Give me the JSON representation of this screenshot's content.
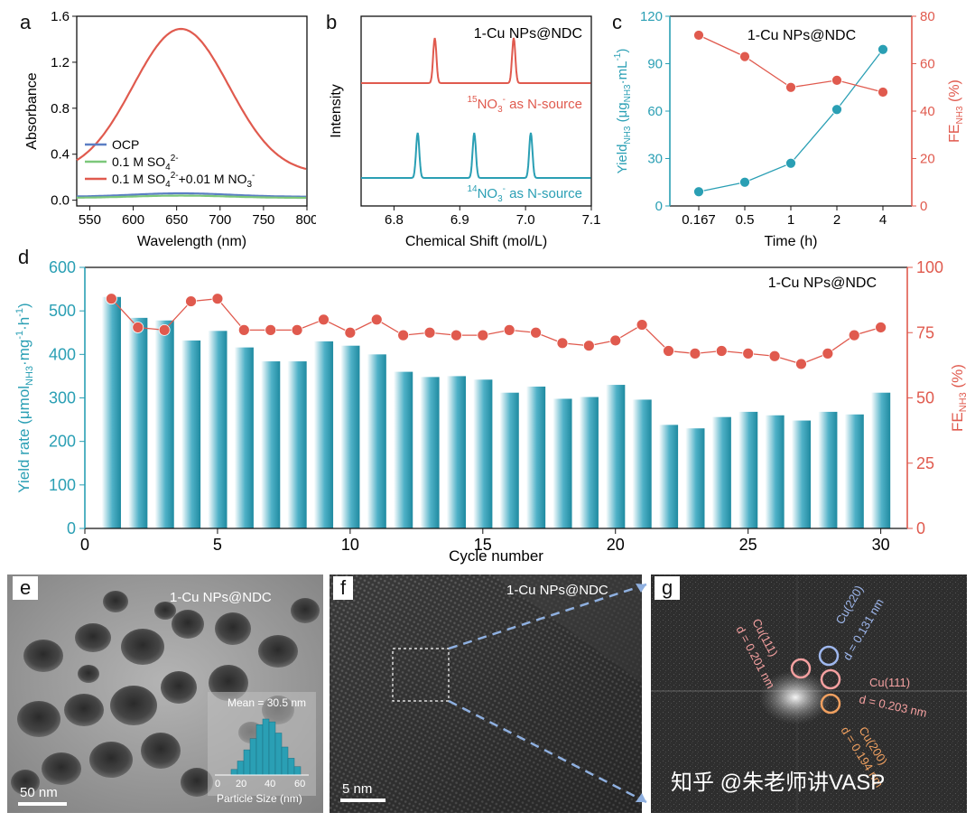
{
  "panels": {
    "a": "a",
    "b": "b",
    "c": "c",
    "d": "d",
    "e": "e",
    "f": "f",
    "g": "g"
  },
  "colors": {
    "red": "#e05a4e",
    "teal": "#2a9fb4",
    "blue": "#5b7fc4",
    "green": "#7cc77a",
    "axis": "#111111"
  },
  "chart_data": [
    {
      "id": "a",
      "type": "line",
      "xlabel": "Wavelength (nm)",
      "ylabel": "Absorbance",
      "xlim": [
        535,
        800
      ],
      "ylim": [
        -0.05,
        1.6
      ],
      "xticks": [
        550,
        600,
        650,
        700,
        750,
        800
      ],
      "yticks": [
        0.0,
        0.4,
        0.8,
        1.2,
        1.6
      ],
      "ytick_labels": [
        "0.0",
        "0.4",
        "0.8",
        "1.2",
        "1.6"
      ],
      "series": [
        {
          "name": "OCP",
          "color": "#5b7fc4",
          "peak": 0.06,
          "base": 0.03
        },
        {
          "name": "0.1 M SO4 2-",
          "color": "#7cc77a",
          "peak": 0.04,
          "base": 0.02
        },
        {
          "name": "0.1 M SO4 2- +0.01 M NO3 -",
          "color": "#e05a4e",
          "peak": 1.49,
          "base": 0.23
        }
      ],
      "legend": [
        {
          "main": "OCP",
          "sup": "",
          "sub": "",
          "tail": ""
        },
        {
          "main": "0.1 M SO",
          "sub": "4",
          "sup": "2-",
          "tail": ""
        },
        {
          "main": "0.1 M SO",
          "sub": "4",
          "sup": "2-",
          "tail": "+0.01 M NO",
          "sub2": "3",
          "sup2": "-"
        }
      ]
    },
    {
      "id": "b",
      "type": "line",
      "xlabel": "Chemical Shift (mol/L)",
      "ylabel": "Intensity",
      "xlim": [
        6.75,
        7.1
      ],
      "xticks": [
        6.8,
        6.9,
        7.0,
        7.1
      ],
      "xtick_labels": [
        "6.8",
        "6.9",
        "7.0",
        "7.1"
      ],
      "title": "1-Cu NPs@NDC",
      "series": [
        {
          "name": "15NO3- as N-source",
          "color": "#e05a4e",
          "peaks": [
            6.862,
            6.982
          ]
        },
        {
          "name": "14NO3- as N-source",
          "color": "#2a9fb4",
          "peaks": [
            6.836,
            6.922,
            7.008
          ]
        }
      ],
      "labels": [
        {
          "sup": "15",
          "main": "NO",
          "sub": "3",
          "sup2": "-",
          "tail": " as N-source"
        },
        {
          "sup": "14",
          "main": "NO",
          "sub": "3",
          "sup2": "-",
          "tail": " as N-source"
        }
      ]
    },
    {
      "id": "c",
      "type": "line",
      "title": "1-Cu NPs@NDC",
      "xlabel": "Time (h)",
      "categories": [
        "0.167",
        "0.5",
        "1",
        "2",
        "4"
      ],
      "ylabel_left": "Yield",
      "ylabel_left_sub": "NH3",
      "ylabel_left_unit1": " (μg",
      "ylabel_left_unit_sub": "NH3",
      "ylabel_left_unit2": "·mL",
      "ylabel_left_unit_sup": "-1",
      "ylabel_left_unit3": ")",
      "ylabel_right": "FE",
      "ylabel_right_sub": "NH3",
      "ylabel_right_unit": " (%)",
      "ylim_left": [
        0,
        120
      ],
      "yticks_left": [
        0,
        30,
        60,
        90,
        120
      ],
      "ylim_right": [
        0,
        80
      ],
      "yticks_right": [
        0,
        20,
        40,
        60,
        80
      ],
      "series": [
        {
          "name": "Yield",
          "axis": "left",
          "color": "#2a9fb4",
          "values": [
            9,
            15,
            27,
            61,
            99
          ]
        },
        {
          "name": "FE",
          "axis": "right",
          "color": "#e05a4e",
          "values": [
            72,
            63,
            50,
            53,
            48
          ]
        }
      ]
    },
    {
      "id": "d",
      "type": "bar",
      "title": "1-Cu NPs@NDC",
      "xlabel": "Cycle number",
      "xlim": [
        0,
        31
      ],
      "xticks": [
        0,
        5,
        10,
        15,
        20,
        25,
        30
      ],
      "ylabel_left": "Yield rate (μmol",
      "ylabel_left_sub": "NH3",
      "ylabel_left_tail": "·mg",
      "ylabel_left_sup": "-1",
      "ylabel_left_tail2": "·h",
      "ylabel_left_sup2": "-1",
      "ylabel_left_tail3": ")",
      "ylabel_right": "FE",
      "ylabel_right_sub": "NH3",
      "ylabel_right_unit": " (%)",
      "ylim_left": [
        0,
        600
      ],
      "yticks_left": [
        0,
        100,
        200,
        300,
        400,
        500,
        600
      ],
      "ylim_right": [
        0,
        100
      ],
      "yticks_right": [
        0,
        25,
        50,
        75,
        100
      ],
      "x": [
        1,
        2,
        3,
        4,
        5,
        6,
        7,
        8,
        9,
        10,
        11,
        12,
        13,
        14,
        15,
        16,
        17,
        18,
        19,
        20,
        21,
        22,
        23,
        24,
        25,
        26,
        27,
        28,
        29,
        30
      ],
      "series": [
        {
          "name": "Yield rate",
          "axis": "left",
          "color": "#2a9fb4",
          "values": [
            532,
            484,
            478,
            432,
            454,
            416,
            384,
            384,
            430,
            420,
            400,
            360,
            348,
            350,
            342,
            312,
            326,
            298,
            302,
            330,
            296,
            238,
            230,
            256,
            268,
            260,
            248,
            268,
            262,
            312
          ]
        },
        {
          "name": "FE",
          "axis": "right",
          "color": "#e05a4e",
          "values": [
            88,
            77,
            76,
            87,
            88,
            76,
            76,
            76,
            80,
            75,
            80,
            74,
            75,
            74,
            74,
            76,
            75,
            71,
            70,
            72,
            78,
            68,
            67,
            68,
            67,
            66,
            63,
            67,
            74,
            77
          ]
        }
      ]
    }
  ],
  "images": {
    "e": {
      "title": "1-Cu NPs@NDC",
      "scale": "50 nm",
      "inset_mean": "Mean = 30.5 nm",
      "inset_xlabel": "Particle Size (nm)",
      "inset_ticks": [
        "0",
        "20",
        "40",
        "60"
      ],
      "inset_hist": [
        2,
        5,
        9,
        13,
        18,
        20,
        19,
        15,
        10,
        6,
        3
      ]
    },
    "f": {
      "title": "1-Cu NPs@NDC",
      "scale": "5 nm"
    },
    "g": {
      "labels": [
        {
          "text": "Cu(111)",
          "color": "#f4a0a0"
        },
        {
          "text": "d = 0.201 nm",
          "color": "#f4a0a0"
        },
        {
          "text": "Cu(220)",
          "color": "#9fb8ee"
        },
        {
          "text": "d = 0.131 nm",
          "color": "#9fb8ee"
        },
        {
          "text": "Cu(111)",
          "color": "#f4a0a0"
        },
        {
          "text": "d = 0.203 nm",
          "color": "#f4a0a0"
        },
        {
          "text": "Cu(200)",
          "color": "#f0a060"
        },
        {
          "text": "d = 0.194 nm",
          "color": "#f0a060"
        }
      ]
    },
    "watermark": "知乎 @朱老师讲VASP"
  }
}
